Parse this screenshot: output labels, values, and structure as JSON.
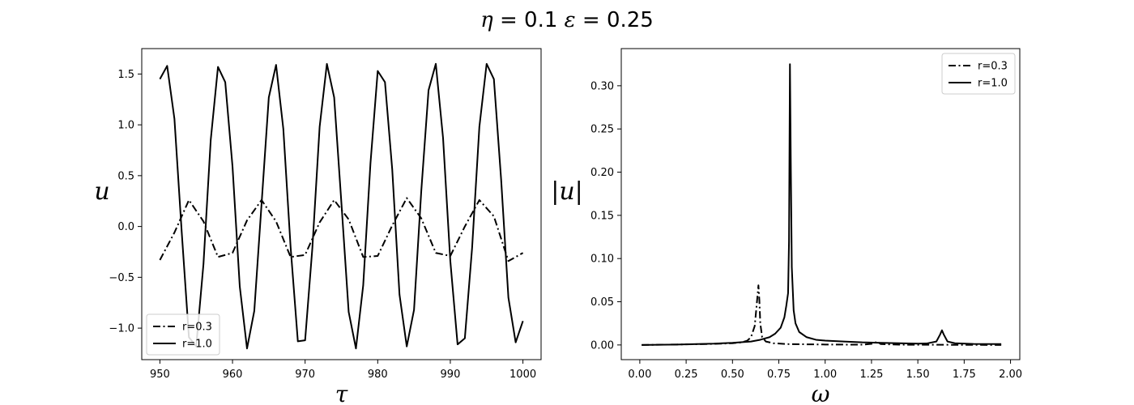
{
  "figure": {
    "suptitle_parts": [
      "η",
      " = 0.1  ",
      "ε",
      " = 0.25"
    ]
  },
  "chart_data": [
    {
      "type": "line",
      "title": "",
      "xlabel": "τ",
      "ylabel": "u",
      "xlim": [
        947.5,
        1002.5
      ],
      "ylim": [
        -1.31,
        1.75
      ],
      "xticks": [
        950,
        960,
        970,
        980,
        990,
        1000
      ],
      "xtick_labels": [
        "950",
        "960",
        "970",
        "980",
        "990",
        "1000"
      ],
      "yticks": [
        -1.0,
        -0.5,
        0.0,
        0.5,
        1.0,
        1.5
      ],
      "ytick_labels": [
        "−1.0",
        "−0.5",
        "0.0",
        "0.5",
        "1.0",
        "1.5"
      ],
      "grid": false,
      "legend": "lower-left",
      "series": [
        {
          "name": "r=0.3",
          "style": "dashdot",
          "color": "#000000",
          "x": [
            950,
            952,
            954,
            956,
            958,
            960,
            962,
            964,
            966,
            968,
            970,
            972,
            974,
            976,
            978,
            980,
            982,
            984,
            986,
            988,
            990,
            992,
            994,
            996,
            998,
            1000
          ],
          "y": [
            -0.33,
            -0.06,
            0.26,
            0.05,
            -0.3,
            -0.26,
            0.06,
            0.26,
            0.05,
            -0.3,
            -0.28,
            0.04,
            0.26,
            0.07,
            -0.3,
            -0.29,
            0.01,
            0.28,
            0.08,
            -0.26,
            -0.29,
            0.0,
            0.26,
            0.1,
            -0.34,
            -0.26
          ]
        },
        {
          "name": "r=1.0",
          "style": "solid",
          "color": "#000000",
          "x": [
            950,
            951,
            952,
            953,
            954,
            955,
            956,
            957,
            958,
            959,
            960,
            961,
            962,
            963,
            964,
            965,
            966,
            967,
            968,
            969,
            970,
            971,
            972,
            973,
            974,
            975,
            976,
            977,
            978,
            979,
            980,
            981,
            982,
            983,
            984,
            985,
            986,
            987,
            988,
            989,
            990,
            991,
            992,
            993,
            994,
            995,
            996,
            997,
            998,
            999,
            1000
          ],
          "y": [
            1.45,
            1.58,
            1.06,
            -0.05,
            -1.09,
            -1.18,
            -0.37,
            0.85,
            1.57,
            1.42,
            0.59,
            -0.59,
            -1.2,
            -0.83,
            0.22,
            1.27,
            1.59,
            0.96,
            -0.2,
            -1.13,
            -1.12,
            -0.21,
            0.98,
            1.6,
            1.27,
            0.23,
            -0.84,
            -1.2,
            -0.58,
            0.62,
            1.53,
            1.42,
            0.56,
            -0.67,
            -1.18,
            -0.82,
            0.35,
            1.34,
            1.6,
            0.87,
            -0.34,
            -1.16,
            -1.1,
            -0.21,
            0.98,
            1.6,
            1.45,
            0.46,
            -0.7,
            -1.14,
            -0.93
          ]
        }
      ]
    },
    {
      "type": "line",
      "title": "",
      "xlabel": "ω",
      "ylabel": "|u|",
      "xlim": [
        -0.1,
        2.05
      ],
      "ylim": [
        -0.017,
        0.343
      ],
      "xticks": [
        0.0,
        0.25,
        0.5,
        0.75,
        1.0,
        1.25,
        1.5,
        1.75,
        2.0
      ],
      "xtick_labels": [
        "0.00",
        "0.25",
        "0.50",
        "0.75",
        "1.00",
        "1.25",
        "1.50",
        "1.75",
        "2.00"
      ],
      "yticks": [
        0.0,
        0.05,
        0.1,
        0.15,
        0.2,
        0.25,
        0.3
      ],
      "ytick_labels": [
        "0.00",
        "0.05",
        "0.10",
        "0.15",
        "0.20",
        "0.25",
        "0.30"
      ],
      "grid": false,
      "legend": "upper-right",
      "series": [
        {
          "name": "r=0.3",
          "style": "dashdot",
          "color": "#000000",
          "x": [
            0.01,
            0.2,
            0.4,
            0.5,
            0.55,
            0.58,
            0.6,
            0.62,
            0.63,
            0.64,
            0.645,
            0.65,
            0.66,
            0.68,
            0.72,
            0.8,
            1.0,
            1.2,
            1.26,
            1.28,
            1.3,
            1.4,
            1.6,
            1.8,
            1.95
          ],
          "y": [
            0.0,
            0.0005,
            0.0012,
            0.002,
            0.003,
            0.005,
            0.009,
            0.022,
            0.045,
            0.069,
            0.052,
            0.025,
            0.009,
            0.004,
            0.002,
            0.001,
            0.0005,
            0.0003,
            0.0015,
            0.004,
            0.001,
            0.0003,
            0.0002,
            0.0001,
            0.0
          ]
        },
        {
          "name": "r=1.0",
          "style": "solid",
          "color": "#000000",
          "x": [
            0.01,
            0.2,
            0.4,
            0.5,
            0.6,
            0.65,
            0.7,
            0.73,
            0.76,
            0.78,
            0.79,
            0.8,
            0.805,
            0.81,
            0.815,
            0.82,
            0.83,
            0.84,
            0.86,
            0.9,
            0.95,
            1.0,
            1.1,
            1.2,
            1.3,
            1.4,
            1.5,
            1.55,
            1.6,
            1.62,
            1.63,
            1.64,
            1.66,
            1.7,
            1.8,
            1.95
          ],
          "y": [
            0.0,
            0.0005,
            0.0015,
            0.0025,
            0.004,
            0.006,
            0.009,
            0.013,
            0.02,
            0.032,
            0.045,
            0.06,
            0.12,
            0.325,
            0.2,
            0.09,
            0.04,
            0.025,
            0.015,
            0.009,
            0.006,
            0.005,
            0.004,
            0.003,
            0.0025,
            0.002,
            0.0015,
            0.0018,
            0.004,
            0.012,
            0.017,
            0.012,
            0.004,
            0.002,
            0.0012,
            0.001
          ]
        }
      ]
    }
  ]
}
